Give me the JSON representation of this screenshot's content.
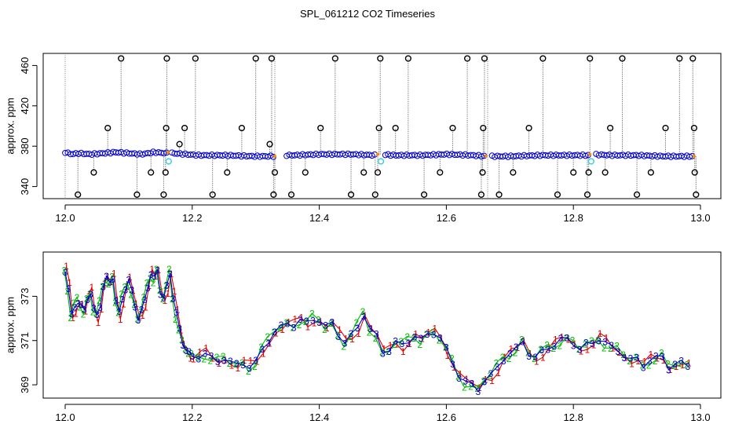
{
  "title": "SPL_061212  CO2 Timeseries",
  "chart_data": [
    {
      "type": "scatter",
      "name": "upper",
      "title": "SPL_061212  CO2 Timeseries",
      "xlabel": "",
      "ylabel": "approx. ppm",
      "xlim": [
        12.0,
        13.0
      ],
      "ylim": [
        328,
        472
      ],
      "xticks": [
        12.0,
        12.2,
        12.4,
        12.6,
        12.8,
        13.0
      ],
      "xtick_labels": [
        "12.0",
        "12.2",
        "12.4",
        "12.6",
        "12.8",
        "13.0"
      ],
      "yticks": [
        340,
        380,
        420,
        460
      ],
      "ytick_labels": [
        "340",
        "380",
        "420",
        "460"
      ],
      "colors": {
        "main": "#0000cc",
        "outlier": "#000000",
        "flag": "#33ccdd",
        "spike": "#808080",
        "orange": "#ff8800"
      },
      "baseline": {
        "x": [
          12.0,
          12.01,
          12.02,
          12.04,
          12.06,
          12.08,
          12.1,
          12.12,
          12.14,
          12.16,
          12.161,
          12.17,
          12.19,
          12.21,
          12.25,
          12.3,
          12.33,
          12.331,
          12.36,
          12.4,
          12.45,
          12.49,
          12.491,
          12.52,
          12.56,
          12.6,
          12.64,
          12.665,
          12.666,
          12.7,
          12.75,
          12.8,
          12.825,
          12.826,
          12.86,
          12.9,
          12.94,
          12.98,
          12.99
        ],
        "y": [
          374,
          372,
          373,
          372,
          373,
          374,
          373,
          372,
          374,
          373,
          374,
          373,
          372,
          371,
          371,
          370,
          370,
          371,
          371,
          372,
          372,
          371,
          372,
          371,
          371,
          372,
          371,
          370,
          370,
          370,
          371,
          371,
          371,
          372,
          371,
          371,
          370,
          370,
          370
        ]
      },
      "outliers": [
        {
          "x": 12.02,
          "y": 332
        },
        {
          "x": 12.045,
          "y": 354
        },
        {
          "x": 12.067,
          "y": 398
        },
        {
          "x": 12.088,
          "y": 467
        },
        {
          "x": 12.113,
          "y": 332
        },
        {
          "x": 12.135,
          "y": 354
        },
        {
          "x": 12.155,
          "y": 332
        },
        {
          "x": 12.158,
          "y": 354
        },
        {
          "x": 12.159,
          "y": 398
        },
        {
          "x": 12.16,
          "y": 467
        },
        {
          "x": 12.18,
          "y": 382
        },
        {
          "x": 12.188,
          "y": 398
        },
        {
          "x": 12.205,
          "y": 467
        },
        {
          "x": 12.232,
          "y": 332
        },
        {
          "x": 12.255,
          "y": 354
        },
        {
          "x": 12.278,
          "y": 398
        },
        {
          "x": 12.3,
          "y": 467
        },
        {
          "x": 12.322,
          "y": 382
        },
        {
          "x": 12.325,
          "y": 467
        },
        {
          "x": 12.328,
          "y": 332
        },
        {
          "x": 12.33,
          "y": 354
        },
        {
          "x": 12.356,
          "y": 332
        },
        {
          "x": 12.378,
          "y": 354
        },
        {
          "x": 12.402,
          "y": 398
        },
        {
          "x": 12.425,
          "y": 467
        },
        {
          "x": 12.45,
          "y": 332
        },
        {
          "x": 12.47,
          "y": 354
        },
        {
          "x": 12.488,
          "y": 332
        },
        {
          "x": 12.492,
          "y": 354
        },
        {
          "x": 12.494,
          "y": 398
        },
        {
          "x": 12.496,
          "y": 467
        },
        {
          "x": 12.52,
          "y": 398
        },
        {
          "x": 12.54,
          "y": 467
        },
        {
          "x": 12.565,
          "y": 332
        },
        {
          "x": 12.59,
          "y": 354
        },
        {
          "x": 12.61,
          "y": 398
        },
        {
          "x": 12.633,
          "y": 467
        },
        {
          "x": 12.655,
          "y": 332
        },
        {
          "x": 12.657,
          "y": 354
        },
        {
          "x": 12.658,
          "y": 398
        },
        {
          "x": 12.66,
          "y": 467
        },
        {
          "x": 12.683,
          "y": 332
        },
        {
          "x": 12.705,
          "y": 354
        },
        {
          "x": 12.73,
          "y": 398
        },
        {
          "x": 12.752,
          "y": 467
        },
        {
          "x": 12.775,
          "y": 332
        },
        {
          "x": 12.8,
          "y": 354
        },
        {
          "x": 12.822,
          "y": 332
        },
        {
          "x": 12.824,
          "y": 354
        },
        {
          "x": 12.826,
          "y": 467
        },
        {
          "x": 12.85,
          "y": 354
        },
        {
          "x": 12.858,
          "y": 398
        },
        {
          "x": 12.877,
          "y": 467
        },
        {
          "x": 12.9,
          "y": 332
        },
        {
          "x": 12.922,
          "y": 354
        },
        {
          "x": 12.945,
          "y": 398
        },
        {
          "x": 12.967,
          "y": 467
        },
        {
          "x": 12.988,
          "y": 467
        },
        {
          "x": 12.99,
          "y": 398
        },
        {
          "x": 12.991,
          "y": 354
        },
        {
          "x": 12.993,
          "y": 332
        }
      ],
      "flags": [
        {
          "x": 12.163,
          "y": 365
        },
        {
          "x": 12.497,
          "y": 365
        },
        {
          "x": 12.828,
          "y": 365
        }
      ]
    },
    {
      "type": "line",
      "name": "lower",
      "title": "",
      "xlabel": "",
      "ylabel": "approx. ppm",
      "xlim": [
        12.0,
        13.0
      ],
      "ylim": [
        368.4,
        375.0
      ],
      "xticks": [
        12.0,
        12.2,
        12.4,
        12.6,
        12.8,
        13.0
      ],
      "xtick_labels": [
        "12.0",
        "12.2",
        "12.4",
        "12.6",
        "12.8",
        "13.0"
      ],
      "yticks": [
        369,
        371,
        373
      ],
      "ytick_labels": [
        "369",
        "371",
        "373"
      ],
      "colors": {
        "series1": "#dd0000",
        "series2": "#00bb00",
        "series3": "#0000cc"
      },
      "series": [
        {
          "name": "1",
          "color": "#dd0000",
          "glyph": "1"
        },
        {
          "name": "2",
          "color": "#00bb00",
          "glyph": "2"
        },
        {
          "name": "3",
          "color": "#0000cc",
          "glyph": "3"
        }
      ],
      "x": [
        12.0,
        12.005,
        12.01,
        12.015,
        12.02,
        12.025,
        12.03,
        12.035,
        12.04,
        12.045,
        12.05,
        12.055,
        12.06,
        12.065,
        12.07,
        12.075,
        12.08,
        12.085,
        12.09,
        12.095,
        12.1,
        12.105,
        12.11,
        12.115,
        12.12,
        12.125,
        12.13,
        12.135,
        12.14,
        12.145,
        12.15,
        12.155,
        12.16,
        12.165,
        12.17,
        12.175,
        12.18,
        12.185,
        12.19,
        12.195,
        12.2,
        12.21,
        12.22,
        12.23,
        12.24,
        12.25,
        12.26,
        12.27,
        12.28,
        12.29,
        12.3,
        12.31,
        12.32,
        12.33,
        12.34,
        12.35,
        12.36,
        12.37,
        12.38,
        12.39,
        12.4,
        12.41,
        12.42,
        12.43,
        12.44,
        12.45,
        12.46,
        12.47,
        12.48,
        12.49,
        12.5,
        12.51,
        12.52,
        12.53,
        12.54,
        12.55,
        12.56,
        12.57,
        12.58,
        12.59,
        12.6,
        12.61,
        12.62,
        12.63,
        12.64,
        12.65,
        12.66,
        12.67,
        12.68,
        12.69,
        12.7,
        12.71,
        12.72,
        12.73,
        12.74,
        12.75,
        12.76,
        12.77,
        12.78,
        12.79,
        12.8,
        12.81,
        12.82,
        12.83,
        12.84,
        12.85,
        12.86,
        12.87,
        12.88,
        12.89,
        12.9,
        12.91,
        12.92,
        12.93,
        12.94,
        12.95,
        12.96,
        12.97,
        12.98
      ],
      "y": [
        374.2,
        373.4,
        372.1,
        372.5,
        372.8,
        372.6,
        372.3,
        372.9,
        373.2,
        372.4,
        372.1,
        372.6,
        373.5,
        373.8,
        373.6,
        373.9,
        372.8,
        372.2,
        372.9,
        373.4,
        373.7,
        373.2,
        372.6,
        372.0,
        372.3,
        372.8,
        373.5,
        374.0,
        373.8,
        374.2,
        373.2,
        372.9,
        373.4,
        374.1,
        373.0,
        372.2,
        371.5,
        370.9,
        370.6,
        370.4,
        370.3,
        370.3,
        370.4,
        370.2,
        370.1,
        370.2,
        370.0,
        369.9,
        370.0,
        369.8,
        370.0,
        370.6,
        371.0,
        371.4,
        371.6,
        371.8,
        371.7,
        371.9,
        371.8,
        372.0,
        371.9,
        371.6,
        371.8,
        371.3,
        370.9,
        371.2,
        371.6,
        372.2,
        371.5,
        371.2,
        370.5,
        370.6,
        370.9,
        370.8,
        371.0,
        371.2,
        371.0,
        371.3,
        371.4,
        371.1,
        370.6,
        370.0,
        369.4,
        369.1,
        369.0,
        368.8,
        369.2,
        369.4,
        369.8,
        370.2,
        370.4,
        370.6,
        371.0,
        370.4,
        370.2,
        370.5,
        370.7,
        370.8,
        371.0,
        371.1,
        370.9,
        370.6,
        370.8,
        370.9,
        371.1,
        370.9,
        370.7,
        370.6,
        370.3,
        370.1,
        370.2,
        369.9,
        370.1,
        370.2,
        370.3,
        369.8,
        369.9,
        370.0,
        369.9
      ]
    }
  ]
}
